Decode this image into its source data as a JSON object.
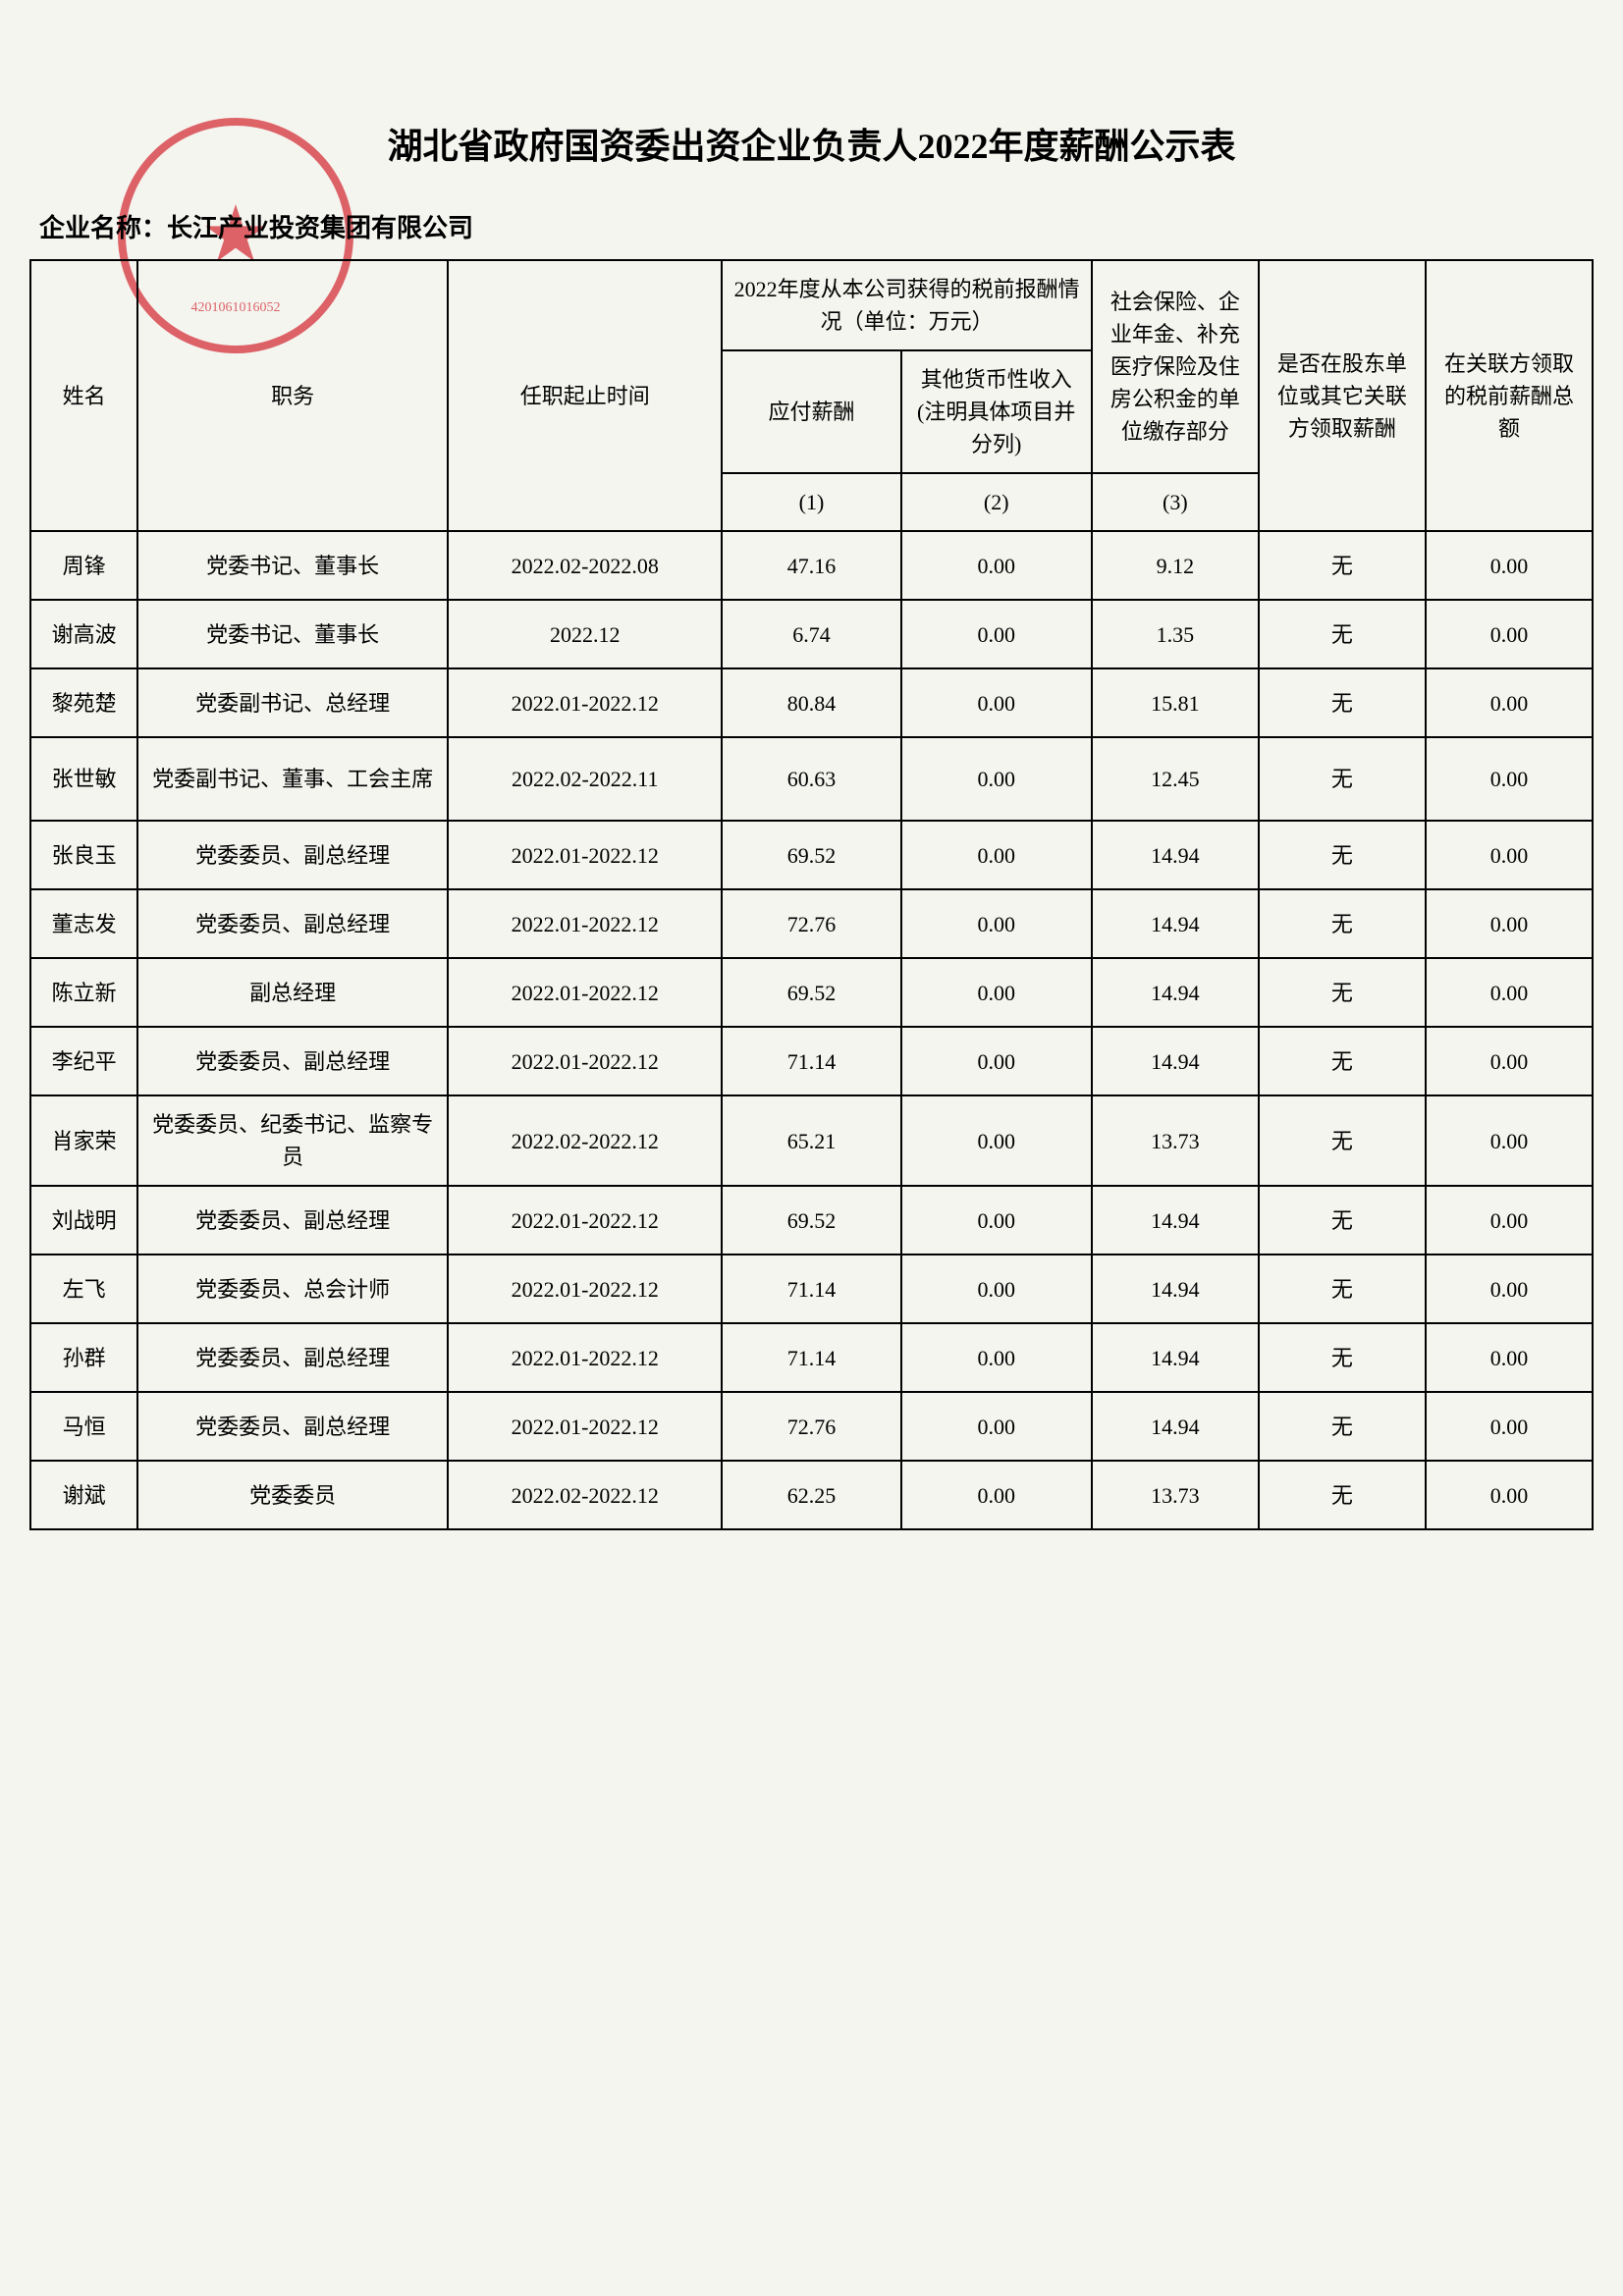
{
  "title": "湖北省政府国资委出资企业负责人2022年度薪酬公示表",
  "company_label": "企业名称：",
  "company_name": "长江产业投资集团有限公司",
  "stamp_code": "4201061016052",
  "headers": {
    "name": "姓名",
    "position": "职务",
    "tenure": "任职起止时间",
    "pretax_group": "2022年度从本公司获得的税前报酬情况（单位：万元）",
    "payable": "应付薪酬",
    "other_income": "其他货币性收入(注明具体项目并分列)",
    "social": "社会保险、企业年金、补充医疗保险及住房公积金的单位缴存部分",
    "shareholder": "是否在股东单位或其它关联方领取薪酬",
    "related_total": "在关联方领取的税前薪酬总额",
    "col1": "(1)",
    "col2": "(2)",
    "col3": "(3)"
  },
  "rows": [
    {
      "name": "周锋",
      "position": "党委书记、董事长",
      "tenure": "2022.02-2022.08",
      "payable": "47.16",
      "other": "0.00",
      "social": "9.12",
      "shareholder": "无",
      "related": "0.00"
    },
    {
      "name": "谢高波",
      "position": "党委书记、董事长",
      "tenure": "2022.12",
      "payable": "6.74",
      "other": "0.00",
      "social": "1.35",
      "shareholder": "无",
      "related": "0.00"
    },
    {
      "name": "黎苑楚",
      "position": "党委副书记、总经理",
      "tenure": "2022.01-2022.12",
      "payable": "80.84",
      "other": "0.00",
      "social": "15.81",
      "shareholder": "无",
      "related": "0.00"
    },
    {
      "name": "张世敏",
      "position": "党委副书记、董事、工会主席",
      "tenure": "2022.02-2022.11",
      "payable": "60.63",
      "other": "0.00",
      "social": "12.45",
      "shareholder": "无",
      "related": "0.00"
    },
    {
      "name": "张良玉",
      "position": "党委委员、副总经理",
      "tenure": "2022.01-2022.12",
      "payable": "69.52",
      "other": "0.00",
      "social": "14.94",
      "shareholder": "无",
      "related": "0.00"
    },
    {
      "name": "董志发",
      "position": "党委委员、副总经理",
      "tenure": "2022.01-2022.12",
      "payable": "72.76",
      "other": "0.00",
      "social": "14.94",
      "shareholder": "无",
      "related": "0.00"
    },
    {
      "name": "陈立新",
      "position": "副总经理",
      "tenure": "2022.01-2022.12",
      "payable": "69.52",
      "other": "0.00",
      "social": "14.94",
      "shareholder": "无",
      "related": "0.00"
    },
    {
      "name": "李纪平",
      "position": "党委委员、副总经理",
      "tenure": "2022.01-2022.12",
      "payable": "71.14",
      "other": "0.00",
      "social": "14.94",
      "shareholder": "无",
      "related": "0.00"
    },
    {
      "name": "肖家荣",
      "position": "党委委员、纪委书记、监察专员",
      "tenure": "2022.02-2022.12",
      "payable": "65.21",
      "other": "0.00",
      "social": "13.73",
      "shareholder": "无",
      "related": "0.00"
    },
    {
      "name": "刘战明",
      "position": "党委委员、副总经理",
      "tenure": "2022.01-2022.12",
      "payable": "69.52",
      "other": "0.00",
      "social": "14.94",
      "shareholder": "无",
      "related": "0.00"
    },
    {
      "name": "左飞",
      "position": "党委委员、总会计师",
      "tenure": "2022.01-2022.12",
      "payable": "71.14",
      "other": "0.00",
      "social": "14.94",
      "shareholder": "无",
      "related": "0.00"
    },
    {
      "name": "孙群",
      "position": "党委委员、副总经理",
      "tenure": "2022.01-2022.12",
      "payable": "71.14",
      "other": "0.00",
      "social": "14.94",
      "shareholder": "无",
      "related": "0.00"
    },
    {
      "name": "马恒",
      "position": "党委委员、副总经理",
      "tenure": "2022.01-2022.12",
      "payable": "72.76",
      "other": "0.00",
      "social": "14.94",
      "shareholder": "无",
      "related": "0.00"
    },
    {
      "name": "谢斌",
      "position": "党委委员",
      "tenure": "2022.02-2022.12",
      "payable": "62.25",
      "other": "0.00",
      "social": "13.73",
      "shareholder": "无",
      "related": "0.00"
    }
  ],
  "style": {
    "background": "#f5f5f0",
    "border_color": "#000000",
    "stamp_color": "#d4323a",
    "title_fontsize": 36,
    "cell_fontsize": 22
  }
}
